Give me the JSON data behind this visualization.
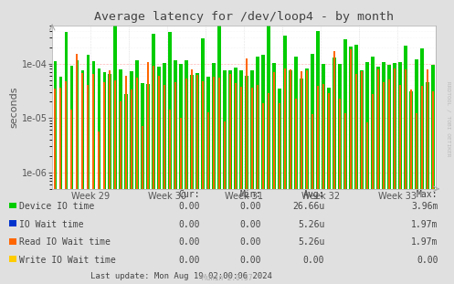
{
  "title": "Average latency for /dev/loop4 - by month",
  "ylabel": "seconds",
  "bg_color": "#e0e0e0",
  "plot_bg_color": "#ffffff",
  "grid_color_major": "#ff9999",
  "grid_color_minor": "#dddddd",
  "week_labels": [
    "Week 29",
    "Week 30",
    "Week 31",
    "Week 32",
    "Week 33"
  ],
  "legend": [
    {
      "label": "Device IO time",
      "color": "#00cc00"
    },
    {
      "label": "IO Wait time",
      "color": "#0033cc"
    },
    {
      "label": "Read IO Wait time",
      "color": "#ff6600"
    },
    {
      "label": "Write IO Wait time",
      "color": "#ffcc00"
    }
  ],
  "stats_headers": [
    "Cur:",
    "Min:",
    "Avg:",
    "Max:"
  ],
  "stats": [
    [
      "0.00",
      "0.00",
      "26.66u",
      "3.96m"
    ],
    [
      "0.00",
      "0.00",
      "5.26u",
      "1.97m"
    ],
    [
      "0.00",
      "0.00",
      "5.26u",
      "1.97m"
    ],
    [
      "0.00",
      "0.00",
      "0.00",
      "0.00"
    ]
  ],
  "footer": "Last update: Mon Aug 19 02:00:06 2024",
  "munin_version": "Munin 2.0.57",
  "watermark": "RRDTOOL / TOBI OETIKER",
  "n_groups": 70,
  "weeks": 5,
  "ymin": 5e-07,
  "ymax": 0.0005
}
